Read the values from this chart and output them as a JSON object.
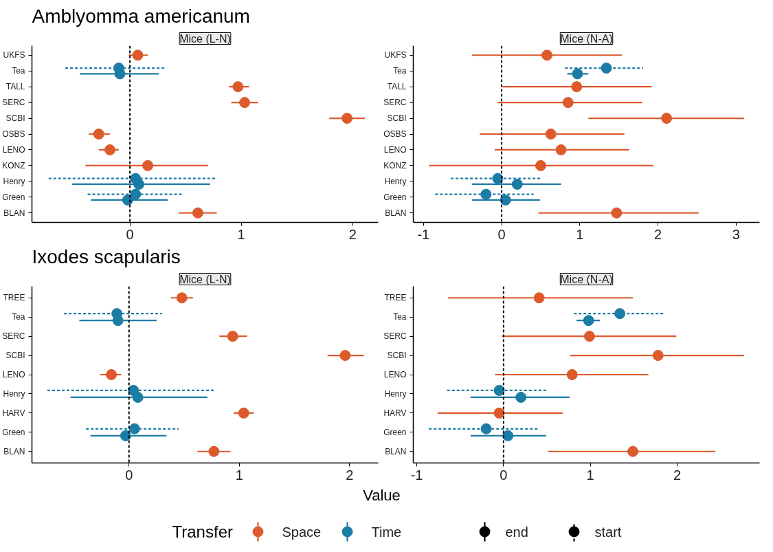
{
  "chart_data": [
    {
      "type": "scatter",
      "orientation": "horizontal",
      "title": "Amblyomma americanum",
      "subtitle": "Mice (L-N)",
      "marker": "circle",
      "grid": false,
      "legend": "bottom",
      "legend_title": "Transfer",
      "annotations": [
        "end",
        "start"
      ],
      "categories": [
        "UKFS",
        "Tea",
        "TALL",
        "SERC",
        "SCBI",
        "OSBS",
        "LENO",
        "KONZ",
        "Henry",
        "Green",
        "BLAN"
      ],
      "xlim": [
        -0.88,
        2.23
      ],
      "xticks": [
        0,
        1,
        2
      ],
      "ref_lines": [
        {
          "axis": "x",
          "value": 0,
          "line_style": "dashed",
          "color": "#000000"
        }
      ],
      "series": [
        {
          "name": "Space",
          "color": "#dd5a2b",
          "line_style": "solid",
          "values": [
            0.07,
            null,
            0.97,
            1.03,
            1.95,
            -0.28,
            -0.18,
            0.16,
            null,
            null,
            0.61
          ],
          "errors": [
            [
              -0.01,
              0.16
            ],
            null,
            [
              0.89,
              1.07
            ],
            [
              0.91,
              1.15
            ],
            [
              1.79,
              2.11
            ],
            [
              -0.37,
              -0.18
            ],
            [
              -0.28,
              -0.1
            ],
            [
              -0.4,
              0.7
            ],
            null,
            null,
            [
              0.44,
              0.78
            ]
          ]
        },
        {
          "name": "Time",
          "color": "#1b7ca5",
          "line_style": "solid",
          "values": [
            null,
            -0.09,
            null,
            null,
            null,
            null,
            null,
            null,
            0.08,
            -0.02,
            null
          ],
          "errors": [
            null,
            [
              -0.45,
              0.26
            ],
            null,
            null,
            null,
            null,
            null,
            null,
            [
              -0.52,
              0.72
            ],
            [
              -0.35,
              0.34
            ],
            null
          ]
        },
        {
          "color": "#1b7ca5",
          "line_style": "dashed",
          "values": [
            null,
            -0.1,
            null,
            null,
            null,
            null,
            null,
            null,
            0.05,
            0.05,
            null
          ],
          "errors": [
            null,
            [
              -0.58,
              0.31
            ],
            null,
            null,
            null,
            null,
            null,
            null,
            [
              -0.73,
              0.77
            ],
            [
              -0.38,
              0.48
            ],
            null
          ]
        }
      ]
    },
    {
      "type": "scatter",
      "orientation": "horizontal",
      "subtitle": "Mice (N-A)",
      "marker": "circle",
      "grid": false,
      "categories": [
        "UKFS",
        "Tea",
        "TALL",
        "SERC",
        "SCBI",
        "OSBS",
        "LENO",
        "KONZ",
        "Henry",
        "Green",
        "BLAN"
      ],
      "xlim": [
        -1.13,
        3.3
      ],
      "xticks": [
        -1,
        0,
        1,
        2,
        3
      ],
      "ref_lines": [
        {
          "axis": "x",
          "value": 0,
          "line_style": "dashed",
          "color": "#000000"
        }
      ],
      "series": [
        {
          "name": "Space",
          "color": "#dd5a2b",
          "line_style": "solid",
          "values": [
            0.58,
            null,
            0.96,
            0.85,
            2.11,
            0.63,
            0.76,
            0.5,
            null,
            null,
            1.47
          ],
          "errors": [
            [
              -0.38,
              1.54
            ],
            null,
            [
              0.01,
              1.92
            ],
            [
              -0.05,
              1.8
            ],
            [
              1.11,
              3.1
            ],
            [
              -0.28,
              1.57
            ],
            [
              -0.09,
              1.63
            ],
            [
              -0.93,
              1.94
            ],
            null,
            null,
            [
              0.47,
              2.52
            ]
          ]
        },
        {
          "name": "Time",
          "color": "#1b7ca5",
          "line_style": "solid",
          "values": [
            null,
            0.97,
            null,
            null,
            null,
            null,
            null,
            null,
            0.2,
            0.05,
            null
          ],
          "errors": [
            null,
            [
              0.84,
              1.11
            ],
            null,
            null,
            null,
            null,
            null,
            null,
            [
              -0.38,
              0.76
            ],
            [
              -0.38,
              0.49
            ],
            null
          ]
        },
        {
          "color": "#1b7ca5",
          "line_style": "dashed",
          "values": [
            null,
            1.34,
            null,
            null,
            null,
            null,
            null,
            null,
            -0.05,
            -0.2,
            null
          ],
          "errors": [
            null,
            [
              0.81,
              1.81
            ],
            null,
            null,
            null,
            null,
            null,
            null,
            [
              -0.65,
              0.5
            ],
            [
              -0.85,
              0.41
            ],
            null
          ]
        }
      ]
    },
    {
      "type": "scatter",
      "orientation": "horizontal",
      "title": "Ixodes scapularis",
      "subtitle": "Mice (L-N)",
      "marker": "circle",
      "grid": false,
      "categories": [
        "TREE",
        "Tea",
        "SERC",
        "SCBI",
        "LENO",
        "Henry",
        "HARV",
        "Green",
        "BLAN"
      ],
      "xlim": [
        -0.88,
        2.26
      ],
      "xticks": [
        0,
        1,
        2
      ],
      "ref_lines": [
        {
          "axis": "x",
          "value": 0,
          "line_style": "dashed",
          "color": "#000000"
        }
      ],
      "series": [
        {
          "name": "Space",
          "color": "#dd5a2b",
          "line_style": "solid",
          "values": [
            0.48,
            null,
            0.94,
            1.96,
            -0.16,
            null,
            1.04,
            null,
            0.77
          ],
          "errors": [
            [
              0.38,
              0.58
            ],
            null,
            [
              0.82,
              1.07
            ],
            [
              1.8,
              2.13
            ],
            [
              -0.26,
              -0.07
            ],
            null,
            [
              0.95,
              1.13
            ],
            null,
            [
              0.62,
              0.92
            ]
          ]
        },
        {
          "name": "Time",
          "color": "#1b7ca5",
          "line_style": "solid",
          "values": [
            null,
            -0.1,
            null,
            null,
            null,
            0.08,
            null,
            -0.03,
            null
          ],
          "errors": [
            null,
            [
              -0.45,
              0.25
            ],
            null,
            null,
            null,
            [
              -0.53,
              0.71
            ],
            null,
            [
              -0.35,
              0.34
            ],
            null
          ]
        },
        {
          "color": "#1b7ca5",
          "line_style": "dashed",
          "values": [
            null,
            -0.11,
            null,
            null,
            null,
            0.04,
            null,
            0.05,
            null
          ],
          "errors": [
            null,
            [
              -0.59,
              0.3
            ],
            null,
            null,
            null,
            [
              -0.74,
              0.78
            ],
            null,
            [
              -0.39,
              0.45
            ],
            null
          ]
        }
      ]
    },
    {
      "type": "scatter",
      "orientation": "horizontal",
      "subtitle": "Mice (N-A)",
      "xlabel": "Value",
      "marker": "circle",
      "grid": false,
      "categories": [
        "TREE",
        "Tea",
        "SERC",
        "SCBI",
        "LENO",
        "Henry",
        "HARV",
        "Green",
        "BLAN"
      ],
      "xlim": [
        -1.04,
        2.95
      ],
      "xticks": [
        -1,
        0,
        1,
        2
      ],
      "ref_lines": [
        {
          "axis": "x",
          "value": 0,
          "line_style": "dashed",
          "color": "#000000"
        }
      ],
      "series": [
        {
          "name": "Space",
          "color": "#dd5a2b",
          "line_style": "solid",
          "values": [
            0.41,
            null,
            0.99,
            1.78,
            0.79,
            null,
            -0.05,
            null,
            1.49
          ],
          "errors": [
            [
              -0.64,
              1.49
            ],
            null,
            [
              -0.02,
              1.99
            ],
            [
              0.77,
              2.77
            ],
            [
              -0.1,
              1.67
            ],
            null,
            [
              -0.76,
              0.68
            ],
            null,
            [
              0.51,
              2.44
            ]
          ]
        },
        {
          "name": "Time",
          "color": "#1b7ca5",
          "line_style": "solid",
          "values": [
            null,
            0.98,
            null,
            null,
            null,
            0.2,
            null,
            0.05,
            null
          ],
          "errors": [
            null,
            [
              0.84,
              1.11
            ],
            null,
            null,
            null,
            [
              -0.38,
              0.76
            ],
            null,
            [
              -0.38,
              0.49
            ],
            null
          ]
        },
        {
          "color": "#1b7ca5",
          "line_style": "dashed",
          "values": [
            null,
            1.34,
            null,
            null,
            null,
            -0.05,
            null,
            -0.2,
            null
          ],
          "errors": [
            null,
            [
              0.81,
              1.86
            ],
            null,
            null,
            null,
            [
              -0.65,
              0.49
            ],
            null,
            [
              -0.86,
              0.4
            ],
            null
          ]
        }
      ]
    }
  ]
}
